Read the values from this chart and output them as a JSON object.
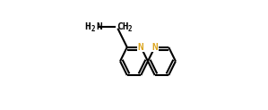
{
  "bg_color": "#ffffff",
  "bond_color": "#000000",
  "N_color": "#daa520",
  "text_color": "#000000",
  "line_width": 1.5,
  "fig_width": 2.99,
  "fig_height": 1.23,
  "dpi": 100,
  "N_label": "N",
  "font_size_main": 8.0,
  "font_size_sub": 5.5,
  "n_font_size": 8.0,
  "xlim": [
    0,
    10
  ],
  "ylim": [
    0,
    3.5
  ]
}
